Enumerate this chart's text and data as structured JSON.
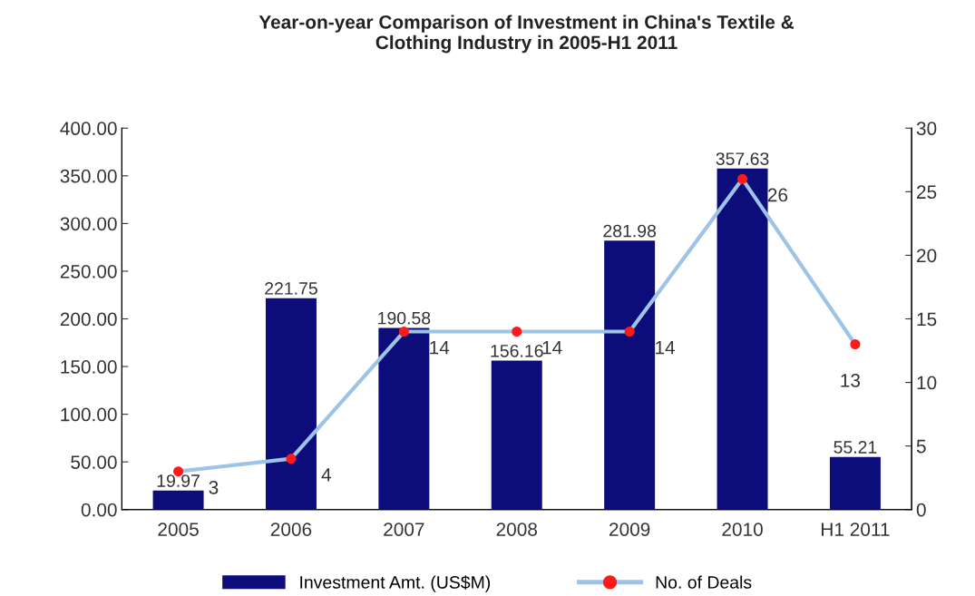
{
  "chart_data": {
    "type": "bar",
    "title": "Year-on-year Comparison of Investment in China's Textile &\nClothing Industry in 2005-H1 2011",
    "categories": [
      "2005",
      "2006",
      "2007",
      "2008",
      "2009",
      "2010",
      "H1 2011"
    ],
    "series": [
      {
        "name": "Investment Amt. (US$M)",
        "color": "#0c0c7a",
        "values": [
          19.97,
          221.75,
          190.58,
          156.16,
          281.98,
          357.63,
          55.21
        ]
      },
      {
        "name": "No. of Deals",
        "type": "line",
        "axis": "y2",
        "color": "#9dc3e6",
        "marker": "circle",
        "values": [
          3,
          4,
          14,
          14,
          14,
          26,
          13
        ]
      }
    ],
    "ylim": [
      0,
      400
    ],
    "yticks": [
      {
        "value": 0,
        "label": "0.00"
      },
      {
        "value": 50,
        "label": "50.00"
      },
      {
        "value": 100,
        "label": "100.00"
      },
      {
        "value": 150,
        "label": "150.00"
      },
      {
        "value": 200,
        "label": "200.00"
      },
      {
        "value": 250,
        "label": "250.00"
      },
      {
        "value": 300,
        "label": "300.00"
      },
      {
        "value": 350,
        "label": "350.00"
      },
      {
        "value": 400,
        "label": "400.00"
      }
    ],
    "y2lim": [
      0,
      30
    ],
    "y2ticks": [
      0,
      5,
      10,
      15,
      20,
      25,
      30
    ],
    "data_labels": true,
    "grid": false,
    "legend": "bottom"
  }
}
